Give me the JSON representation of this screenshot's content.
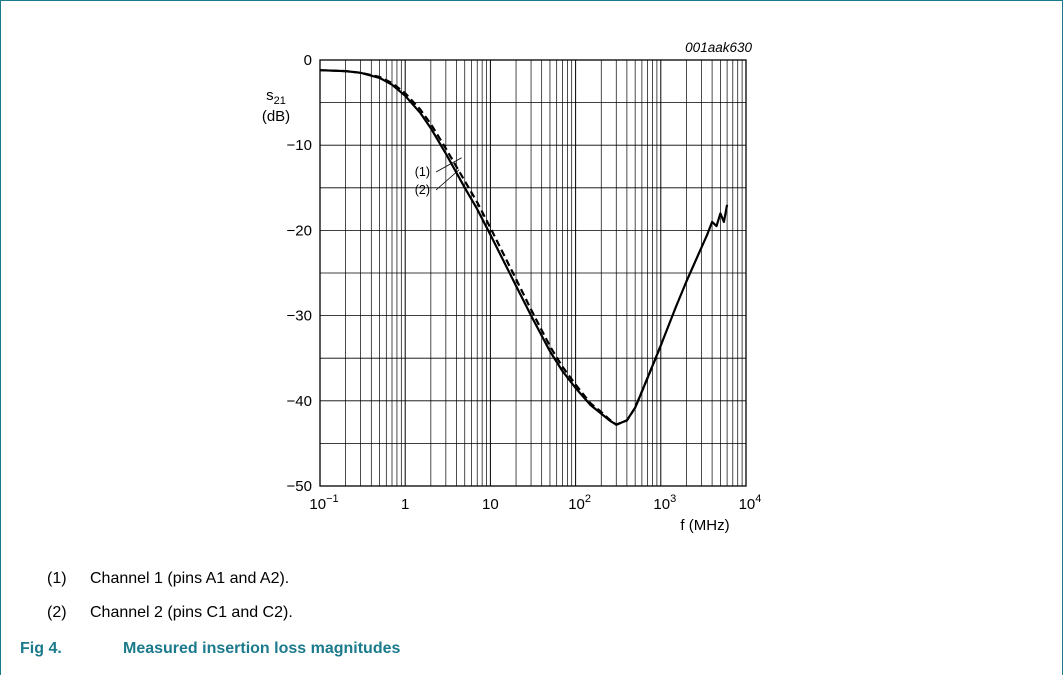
{
  "figure_id": "001aak630",
  "notes": [
    {
      "num": "(1)",
      "text": "Channel 1 (pins A1 and A2)."
    },
    {
      "num": "(2)",
      "text": "Channel 2 (pins C1 and C2)."
    }
  ],
  "caption": {
    "number": "Fig 4.",
    "title": "Measured insertion loss magnitudes"
  },
  "colors": {
    "accent": "#1b7a8c",
    "curve": "#000000",
    "grid": "#000000"
  },
  "chart_data": {
    "type": "line",
    "title": "",
    "xlabel": "f (MHz)",
    "ylabel_main": "s",
    "ylabel_sub": "21",
    "ylabel_unit": "(dB)",
    "xscale": "log",
    "xlim": [
      0.1,
      10000
    ],
    "ylim": [
      -50,
      0
    ],
    "grid": true,
    "x_ticks": [
      {
        "value": 0.1,
        "base": "10",
        "exp": "−1"
      },
      {
        "value": 1,
        "base": "1",
        "exp": ""
      },
      {
        "value": 10,
        "base": "10",
        "exp": ""
      },
      {
        "value": 100,
        "base": "10",
        "exp": "2"
      },
      {
        "value": 1000,
        "base": "10",
        "exp": "3"
      },
      {
        "value": 10000,
        "base": "10",
        "exp": "4"
      }
    ],
    "y_ticks": [
      {
        "value": 0,
        "label": "0"
      },
      {
        "value": -10,
        "label": "−10"
      },
      {
        "value": -20,
        "label": "−20"
      },
      {
        "value": -30,
        "label": "−30"
      },
      {
        "value": -40,
        "label": "−40"
      },
      {
        "value": -50,
        "label": "−50"
      }
    ],
    "series": [
      {
        "name": "(1)",
        "style": "solid",
        "x": [
          0.1,
          0.2,
          0.3,
          0.5,
          0.7,
          1.0,
          1.5,
          2,
          3,
          5,
          7,
          10,
          20,
          30,
          50,
          70,
          100,
          150,
          200,
          250,
          300,
          400,
          500,
          700,
          1000,
          1500,
          2000,
          3000,
          3500,
          4000,
          4500,
          5000,
          5500,
          6000
        ],
        "y": [
          -1.2,
          -1.3,
          -1.5,
          -2.1,
          -2.9,
          -4.2,
          -6.2,
          -8.0,
          -11.0,
          -15.0,
          -17.5,
          -20.5,
          -26.5,
          -30.0,
          -34.2,
          -36.5,
          -38.5,
          -40.5,
          -41.5,
          -42.3,
          -42.8,
          -42.3,
          -40.8,
          -37.3,
          -33.5,
          -29.0,
          -26.0,
          -22.0,
          -20.5,
          -19.0,
          -19.5,
          -18.0,
          -19.0,
          -17.0
        ]
      },
      {
        "name": "(2)",
        "style": "dashed",
        "x": [
          0.1,
          0.2,
          0.3,
          0.5,
          0.7,
          1.0,
          1.5,
          2,
          3,
          5,
          7,
          10,
          20,
          30,
          50,
          70,
          100,
          150,
          200,
          250,
          300,
          400,
          500,
          700,
          1000
        ],
        "y": [
          -1.2,
          -1.3,
          -1.5,
          -2.0,
          -2.7,
          -3.9,
          -5.8,
          -7.5,
          -10.4,
          -14.2,
          -16.7,
          -19.7,
          -25.7,
          -29.3,
          -33.6,
          -36.0,
          -38.1,
          -40.3,
          -41.3,
          -42.2,
          -42.8,
          -42.3,
          -40.8,
          -37.3,
          -33.5
        ]
      }
    ]
  }
}
